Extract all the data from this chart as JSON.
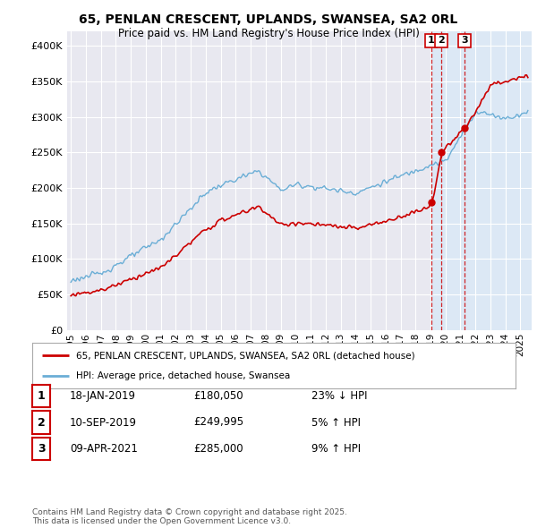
{
  "title1": "65, PENLAN CRESCENT, UPLANDS, SWANSEA, SA2 0RL",
  "title2": "Price paid vs. HM Land Registry's House Price Index (HPI)",
  "ylim": [
    0,
    420000
  ],
  "yticks": [
    0,
    50000,
    100000,
    150000,
    200000,
    250000,
    300000,
    350000,
    400000
  ],
  "xlim_start": 1994.75,
  "xlim_end": 2025.75,
  "hpi_color": "#6baed6",
  "price_color": "#cc0000",
  "vline_color": "#cc0000",
  "sale_dates": [
    2019.04,
    2019.71,
    2021.27
  ],
  "sale_prices": [
    180050,
    249995,
    285000
  ],
  "sale_labels": [
    "1",
    "2",
    "3"
  ],
  "legend_line1": "65, PENLAN CRESCENT, UPLANDS, SWANSEA, SA2 0RL (detached house)",
  "legend_line2": "HPI: Average price, detached house, Swansea",
  "table_rows": [
    [
      "1",
      "18-JAN-2019",
      "£180,050",
      "23% ↓ HPI"
    ],
    [
      "2",
      "10-SEP-2019",
      "£249,995",
      "5% ↑ HPI"
    ],
    [
      "3",
      "09-APR-2021",
      "£285,000",
      "9% ↑ HPI"
    ]
  ],
  "footer": "Contains HM Land Registry data © Crown copyright and database right 2025.\nThis data is licensed under the Open Government Licence v3.0.",
  "bg_color": "#e8e8f0",
  "bg_color_right": "#dce8f5"
}
